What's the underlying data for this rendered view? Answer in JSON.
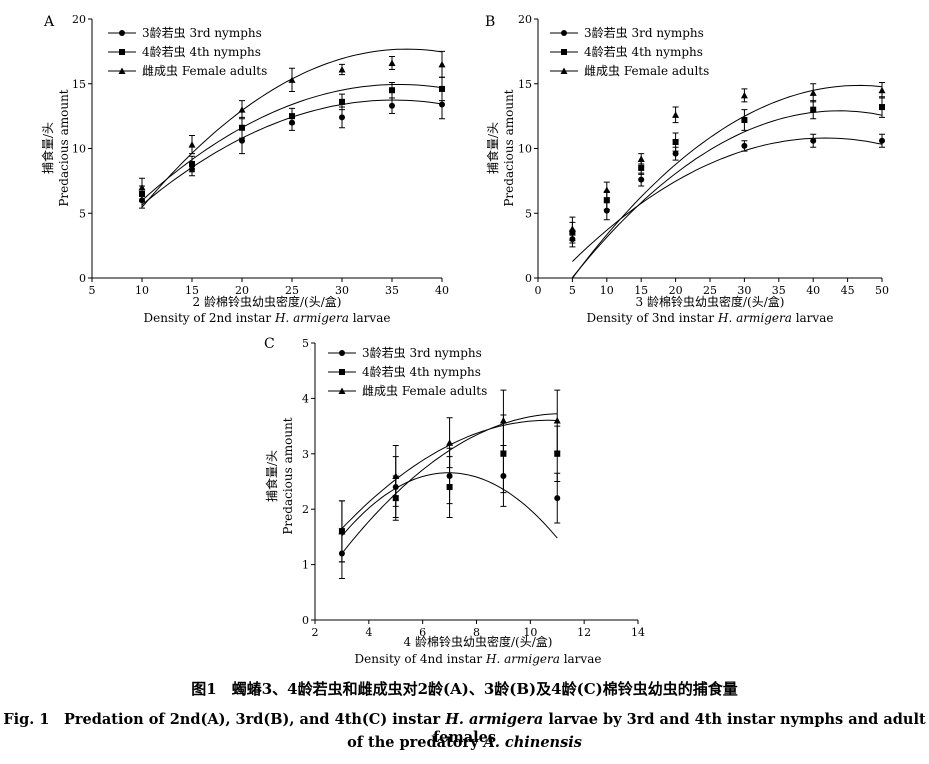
{
  "figure": {
    "caption_cn": "图1　蠋蝽3、4龄若虫和雌成虫对2龄(A)、3龄(B)及4龄(C)棉铃虫幼虫的捕食量",
    "caption_en_prefix": "Fig. 1　Predation of 2nd(A), 3rd(B), and 4th(C) instar ",
    "caption_en_species1": "H. armigera",
    "caption_en_mid": " larvae by 3rd and 4th instar nymphs and adult females",
    "caption_en_line2_prefix": "of the predatory ",
    "caption_en_species2": "A. chinensis"
  },
  "chart_data": [
    {
      "panel": "A",
      "type": "scatter",
      "ylabel_cn": "捕食量/头",
      "ylabel_en": "Predacious amount",
      "xlabel_cn": "2 龄棉铃虫幼虫密度/(头/盒)",
      "xlabel_en_prefix": "Density of 2nd instar ",
      "xlabel_en_species": "H. armigera",
      "xlabel_en_suffix": " larvae",
      "xlim": [
        5,
        40
      ],
      "ylim": [
        0,
        20
      ],
      "xticks": [
        5,
        10,
        15,
        20,
        25,
        30,
        35,
        40
      ],
      "yticks": [
        0,
        5,
        10,
        15,
        20
      ],
      "legend_position": "top-left",
      "series": [
        {
          "name": "3龄若虫 3rd nymphs",
          "marker": "circle",
          "x": [
            10,
            15,
            20,
            25,
            30,
            35,
            40
          ],
          "y": [
            6.0,
            8.4,
            10.6,
            12.0,
            12.4,
            13.3,
            13.4
          ],
          "err": [
            0.6,
            0.5,
            1.0,
            0.6,
            0.8,
            0.6,
            1.1
          ],
          "fit": [
            -0.0128,
            0.9,
            -2.08
          ]
        },
        {
          "name": "4龄若虫 4th nymphs",
          "marker": "square",
          "x": [
            10,
            15,
            20,
            25,
            30,
            35,
            40
          ],
          "y": [
            6.5,
            8.8,
            11.6,
            12.5,
            13.6,
            14.5,
            14.6
          ],
          "err": [
            0.6,
            0.6,
            0.8,
            0.6,
            0.6,
            0.6,
            0.9
          ],
          "fit": [
            -0.0136,
            0.97,
            -2.35
          ]
        },
        {
          "name": "雌成虫 Female adults",
          "marker": "triangle",
          "x": [
            10,
            15,
            20,
            25,
            30,
            35,
            40
          ],
          "y": [
            7.0,
            10.3,
            13.0,
            15.3,
            16.1,
            16.6,
            16.5
          ],
          "err": [
            0.7,
            0.7,
            0.7,
            0.9,
            0.4,
            0.5,
            1.0
          ],
          "fit": [
            -0.0174,
            1.27,
            -5.5
          ]
        }
      ]
    },
    {
      "panel": "B",
      "type": "scatter",
      "ylabel_cn": "捕食量/头",
      "ylabel_en": "Predacious amount",
      "xlabel_cn": "3 龄棉铃虫幼虫密度/(头/盒)",
      "xlabel_en_prefix": "Density of 3nd instar ",
      "xlabel_en_species": "H. armigera",
      "xlabel_en_suffix": " larvae",
      "xlim": [
        0,
        50
      ],
      "ylim": [
        0,
        20
      ],
      "xticks": [
        0,
        5,
        10,
        15,
        20,
        25,
        30,
        35,
        40,
        45,
        50
      ],
      "yticks": [
        0,
        5,
        10,
        15,
        20
      ],
      "legend_position": "top-left",
      "series": [
        {
          "name": "3龄若虫 3rd nymphs",
          "marker": "circle",
          "x": [
            5,
            10,
            15,
            20,
            30,
            40,
            50
          ],
          "y": [
            3.0,
            5.2,
            7.6,
            9.6,
            10.2,
            10.6,
            10.6
          ],
          "err": [
            0.6,
            0.7,
            0.5,
            0.5,
            0.4,
            0.5,
            0.5
          ],
          "fit": [
            -0.00707,
            0.59,
            -1.5
          ]
        },
        {
          "name": "4龄若虫 4th nymphs",
          "marker": "square",
          "x": [
            5,
            10,
            15,
            20,
            30,
            40,
            50
          ],
          "y": [
            3.5,
            6.0,
            8.5,
            10.5,
            12.2,
            13.0,
            13.2
          ],
          "err": [
            0.8,
            0.7,
            0.5,
            0.7,
            0.8,
            0.7,
            0.8
          ],
          "fit": [
            -0.00857,
            0.75,
            -3.5
          ]
        },
        {
          "name": "雌成虫 Female adults",
          "marker": "triangle",
          "x": [
            5,
            10,
            15,
            20,
            30,
            40,
            50
          ],
          "y": [
            3.8,
            6.8,
            9.2,
            12.6,
            14.1,
            14.3,
            14.5
          ],
          "err": [
            0.9,
            0.6,
            0.4,
            0.6,
            0.5,
            0.7,
            0.6
          ],
          "fit": [
            -0.00857,
            0.8,
            -3.8
          ]
        }
      ]
    },
    {
      "panel": "C",
      "type": "scatter",
      "ylabel_cn": "捕食量/头",
      "ylabel_en": "Predacious amount",
      "xlabel_cn": "4 龄棉铃虫幼虫密度/(头/盒)",
      "xlabel_en_prefix": "Density of 4nd instar ",
      "xlabel_en_species": "H. armigera",
      "xlabel_en_suffix": " larvae",
      "xlim": [
        2,
        14
      ],
      "ylim": [
        0,
        5
      ],
      "xticks": [
        2,
        4,
        6,
        8,
        10,
        12,
        14
      ],
      "yticks": [
        0,
        1,
        2,
        3,
        4,
        5
      ],
      "legend_position": "top-left",
      "series": [
        {
          "name": "3龄若虫 3rd nymphs",
          "marker": "circle",
          "x": [
            3,
            5,
            7,
            9,
            11
          ],
          "y": [
            1.2,
            2.4,
            2.6,
            2.6,
            2.2
          ],
          "err": [
            0.45,
            0.55,
            0.5,
            0.55,
            0.45
          ],
          "fit": [
            -0.0725,
            1.01,
            -0.86
          ]
        },
        {
          "name": "4龄若虫 4th nymphs",
          "marker": "square",
          "x": [
            3,
            5,
            7,
            9,
            11
          ],
          "y": [
            1.6,
            2.2,
            2.4,
            3.0,
            3.0
          ],
          "err": [
            0.55,
            0.4,
            0.55,
            0.7,
            0.5
          ],
          "fit": [
            -0.0333,
            0.71,
            -0.18
          ]
        },
        {
          "name": "雌成虫 Female adults",
          "marker": "triangle",
          "x": [
            3,
            5,
            7,
            9,
            11
          ],
          "y": [
            1.6,
            2.6,
            3.2,
            3.6,
            3.6
          ],
          "err": [
            0.55,
            0.55,
            0.45,
            0.55,
            0.55
          ],
          "fit": [
            -0.0375,
            0.84,
            -0.98
          ]
        }
      ]
    }
  ]
}
